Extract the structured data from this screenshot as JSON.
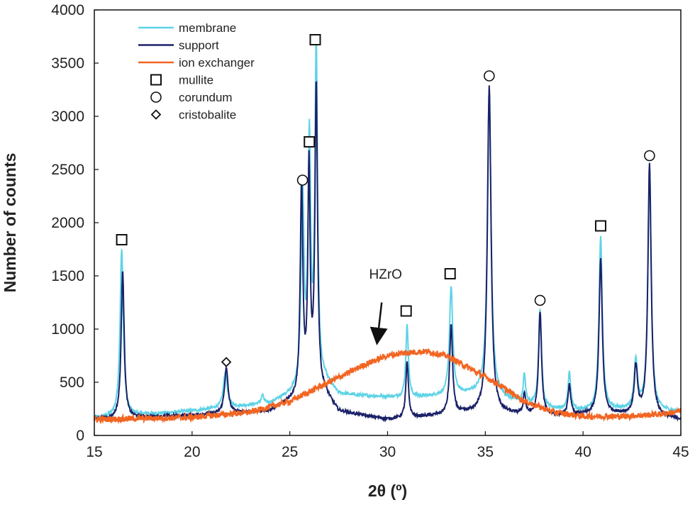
{
  "chart_data": {
    "type": "line",
    "xlabel": "2θ (º)",
    "ylabel": "Number of counts",
    "xlim": [
      15,
      45
    ],
    "ylim": [
      0,
      4000
    ],
    "x_ticks": [
      15,
      20,
      25,
      30,
      35,
      40,
      45
    ],
    "y_ticks": [
      0,
      500,
      1000,
      1500,
      2000,
      2500,
      3000,
      3500,
      4000
    ],
    "grid": false,
    "legend_position": "top-left",
    "series": [
      {
        "name": "membrane",
        "color": "#5fd3e6",
        "baseline": [
          [
            15,
            160
          ],
          [
            20,
            230
          ],
          [
            24,
            300
          ],
          [
            25,
            380
          ],
          [
            26.8,
            500
          ],
          [
            27.5,
            380
          ],
          [
            31,
            350
          ],
          [
            33.5,
            380
          ],
          [
            35,
            400
          ],
          [
            36,
            340
          ],
          [
            38,
            250
          ],
          [
            40,
            230
          ],
          [
            42,
            240
          ],
          [
            45,
            220
          ]
        ],
        "peaks": [
          {
            "x": 16.4,
            "h": 1570,
            "w": 0.1
          },
          {
            "x": 21.7,
            "h": 330,
            "w": 0.12
          },
          {
            "x": 23.6,
            "h": 80,
            "w": 0.08
          },
          {
            "x": 25.65,
            "h": 1850,
            "w": 0.09
          },
          {
            "x": 26.0,
            "h": 2250,
            "w": 0.08
          },
          {
            "x": 26.35,
            "h": 3180,
            "w": 0.08
          },
          {
            "x": 31.0,
            "h": 680,
            "w": 0.08
          },
          {
            "x": 33.25,
            "h": 1020,
            "w": 0.1
          },
          {
            "x": 35.2,
            "h": 2850,
            "w": 0.11
          },
          {
            "x": 37.0,
            "h": 270,
            "w": 0.07
          },
          {
            "x": 37.8,
            "h": 910,
            "w": 0.09
          },
          {
            "x": 39.3,
            "h": 350,
            "w": 0.08
          },
          {
            "x": 40.9,
            "h": 1620,
            "w": 0.1
          },
          {
            "x": 42.7,
            "h": 460,
            "w": 0.1
          },
          {
            "x": 43.4,
            "h": 2280,
            "w": 0.1
          }
        ]
      },
      {
        "name": "support",
        "color": "#1a2168",
        "baseline": [
          [
            15,
            150
          ],
          [
            20,
            190
          ],
          [
            24,
            230
          ],
          [
            25,
            320
          ],
          [
            26.8,
            380
          ],
          [
            27.5,
            220
          ],
          [
            30,
            150
          ],
          [
            31.5,
            170
          ],
          [
            33.5,
            200
          ],
          [
            35,
            220
          ],
          [
            36,
            200
          ],
          [
            38,
            180
          ],
          [
            40,
            190
          ],
          [
            42,
            200
          ],
          [
            45,
            150
          ]
        ],
        "peaks": [
          {
            "x": 16.45,
            "h": 1400,
            "w": 0.09
          },
          {
            "x": 21.75,
            "h": 420,
            "w": 0.11
          },
          {
            "x": 25.6,
            "h": 1980,
            "w": 0.08
          },
          {
            "x": 25.98,
            "h": 2100,
            "w": 0.07
          },
          {
            "x": 26.35,
            "h": 2900,
            "w": 0.08
          },
          {
            "x": 31.0,
            "h": 520,
            "w": 0.08
          },
          {
            "x": 33.25,
            "h": 840,
            "w": 0.09
          },
          {
            "x": 35.2,
            "h": 3060,
            "w": 0.11
          },
          {
            "x": 37.0,
            "h": 200,
            "w": 0.07
          },
          {
            "x": 37.8,
            "h": 980,
            "w": 0.09
          },
          {
            "x": 39.3,
            "h": 290,
            "w": 0.08
          },
          {
            "x": 40.9,
            "h": 1460,
            "w": 0.1
          },
          {
            "x": 42.7,
            "h": 450,
            "w": 0.1
          },
          {
            "x": 43.4,
            "h": 2370,
            "w": 0.1
          }
        ]
      },
      {
        "name": "ion exchanger",
        "color": "#f26522",
        "baseline": [
          [
            15,
            150
          ],
          [
            20,
            170
          ],
          [
            23,
            220
          ],
          [
            25,
            320
          ],
          [
            27,
            500
          ],
          [
            29,
            680
          ],
          [
            30,
            750
          ],
          [
            31,
            780
          ],
          [
            32,
            790
          ],
          [
            33,
            750
          ],
          [
            34,
            650
          ],
          [
            35.5,
            500
          ],
          [
            37,
            320
          ],
          [
            38.5,
            220
          ],
          [
            40,
            180
          ],
          [
            42,
            180
          ],
          [
            44,
            200
          ],
          [
            45,
            230
          ]
        ],
        "peaks": []
      }
    ],
    "markers": [
      {
        "type": "mullite",
        "symbol": "square",
        "label": "mullite"
      },
      {
        "type": "corundum",
        "symbol": "circle",
        "label": "corundum"
      },
      {
        "type": "cristobalite",
        "symbol": "diamond",
        "label": "cristobalite"
      }
    ],
    "peak_markers": [
      {
        "symbol": "square",
        "x": 16.4,
        "y": 1840
      },
      {
        "symbol": "diamond",
        "x": 21.75,
        "y": 690
      },
      {
        "symbol": "circle",
        "x": 25.65,
        "y": 2400
      },
      {
        "symbol": "square",
        "x": 26.0,
        "y": 2760
      },
      {
        "symbol": "square",
        "x": 26.3,
        "y": 3720
      },
      {
        "symbol": "square",
        "x": 30.95,
        "y": 1170
      },
      {
        "symbol": "square",
        "x": 33.2,
        "y": 1520
      },
      {
        "symbol": "circle",
        "x": 35.2,
        "y": 3380
      },
      {
        "symbol": "circle",
        "x": 37.8,
        "y": 1270
      },
      {
        "symbol": "square",
        "x": 40.9,
        "y": 1970
      },
      {
        "symbol": "circle",
        "x": 43.4,
        "y": 2630
      }
    ],
    "annotation": {
      "text": "HZrO",
      "x_text": 29.9,
      "y_text": 1520,
      "arrow_from": [
        29.7,
        1250
      ],
      "arrow_to": [
        29.5,
        930
      ]
    }
  }
}
